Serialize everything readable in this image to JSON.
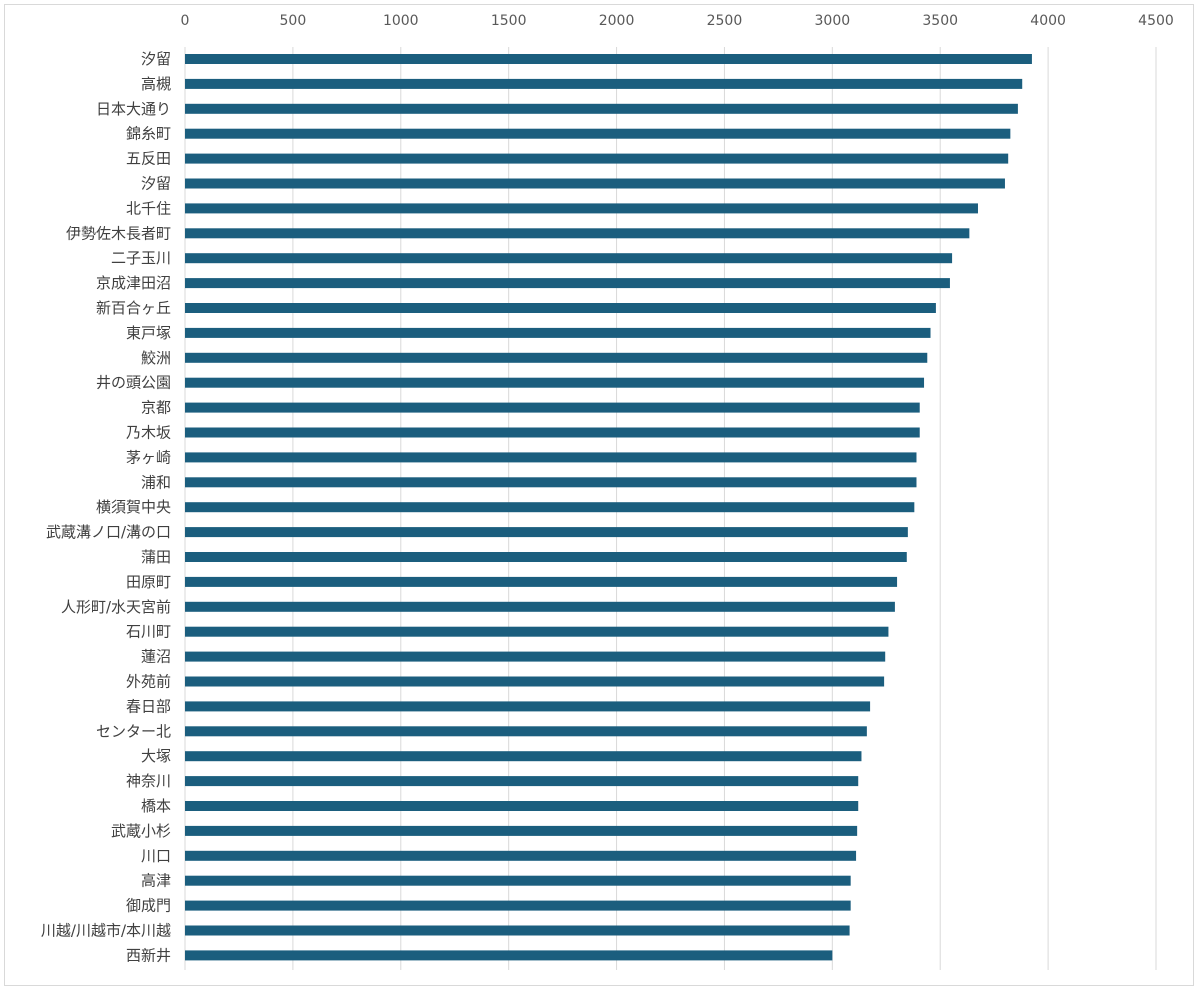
{
  "chart_data": {
    "type": "bar",
    "orientation": "horizontal",
    "xlim": [
      0,
      4500
    ],
    "x_ticks": [
      0,
      500,
      1000,
      1500,
      2000,
      2500,
      3000,
      3500,
      4000,
      4500
    ],
    "x_axis_position": "top",
    "grid": true,
    "bar_color": "#1b5e7e",
    "categories": [
      "汐留",
      "高槻",
      "日本大通り",
      "錦糸町",
      "五反田",
      "汐留",
      "北千住",
      "伊勢佐木長者町",
      "二子玉川",
      "京成津田沼",
      "新百合ヶ丘",
      "東戸塚",
      "鮫洲",
      "井の頭公園",
      "京都",
      "乃木坂",
      "茅ヶ崎",
      "浦和",
      "横須賀中央",
      "武蔵溝ノ口/溝の口",
      "蒲田",
      "田原町",
      "人形町/水天宮前",
      "石川町",
      "蓮沼",
      "外苑前",
      "春日部",
      "センター北",
      "大塚",
      "神奈川",
      "橋本",
      "武蔵小杉",
      "川口",
      "高津",
      "御成門",
      "川越/川越市/本川越",
      "西新井"
    ],
    "values": [
      3925,
      3880,
      3860,
      3825,
      3815,
      3800,
      3675,
      3635,
      3555,
      3545,
      3480,
      3455,
      3440,
      3425,
      3405,
      3405,
      3390,
      3390,
      3380,
      3350,
      3345,
      3300,
      3290,
      3260,
      3245,
      3240,
      3175,
      3160,
      3135,
      3120,
      3120,
      3115,
      3110,
      3085,
      3085,
      3080,
      3000
    ]
  }
}
